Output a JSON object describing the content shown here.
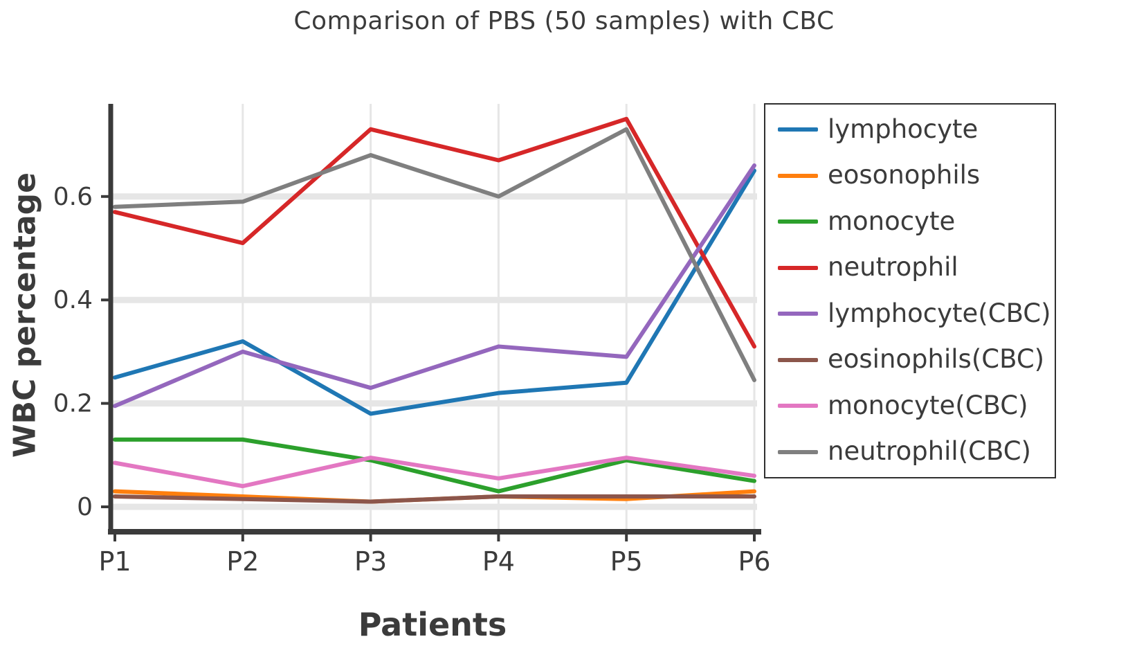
{
  "chart_data": {
    "type": "line",
    "title": "Comparison of PBS (50 samples) with CBC",
    "xlabel": "Patients",
    "ylabel": "WBC percentage",
    "categories": [
      "P1",
      "P2",
      "P3",
      "P4",
      "P5",
      "P6"
    ],
    "ytick_values": [
      0,
      0.2,
      0.4,
      0.6
    ],
    "ytick_labels": [
      "0",
      "0.2",
      "0.4",
      "0.6"
    ],
    "ylim": [
      -0.05,
      0.78
    ],
    "grid": true,
    "legend_position": "right",
    "colors": {
      "axis": "#3a3a3a",
      "gridline": "#e6e6e6",
      "text": "#3b3b3b",
      "legend_border": "#2f2f2f",
      "background": "#ffffff"
    },
    "series": [
      {
        "name": "lymphocyte",
        "color": "#1f77b4",
        "values": [
          0.25,
          0.32,
          0.18,
          0.22,
          0.24,
          0.65
        ]
      },
      {
        "name": "eosonophils",
        "color": "#ff7f0e",
        "values": [
          0.03,
          0.02,
          0.01,
          0.02,
          0.015,
          0.03
        ]
      },
      {
        "name": "monocyte",
        "color": "#2ca02c",
        "values": [
          0.13,
          0.13,
          0.09,
          0.03,
          0.09,
          0.05
        ]
      },
      {
        "name": "neutrophil",
        "color": "#d62728",
        "values": [
          0.57,
          0.51,
          0.73,
          0.67,
          0.75,
          0.31
        ]
      },
      {
        "name": "lymphocyte(CBC)",
        "color": "#9467bd",
        "values": [
          0.195,
          0.3,
          0.23,
          0.31,
          0.29,
          0.66
        ]
      },
      {
        "name": "eosinophils(CBC)",
        "color": "#8c564b",
        "values": [
          0.02,
          0.015,
          0.01,
          0.02,
          0.02,
          0.02
        ]
      },
      {
        "name": "monocyte(CBC)",
        "color": "#e377c2",
        "values": [
          0.085,
          0.04,
          0.095,
          0.055,
          0.095,
          0.06
        ]
      },
      {
        "name": "neutrophil(CBC)",
        "color": "#7f7f7f",
        "values": [
          0.58,
          0.59,
          0.68,
          0.6,
          0.73,
          0.245
        ]
      }
    ]
  }
}
